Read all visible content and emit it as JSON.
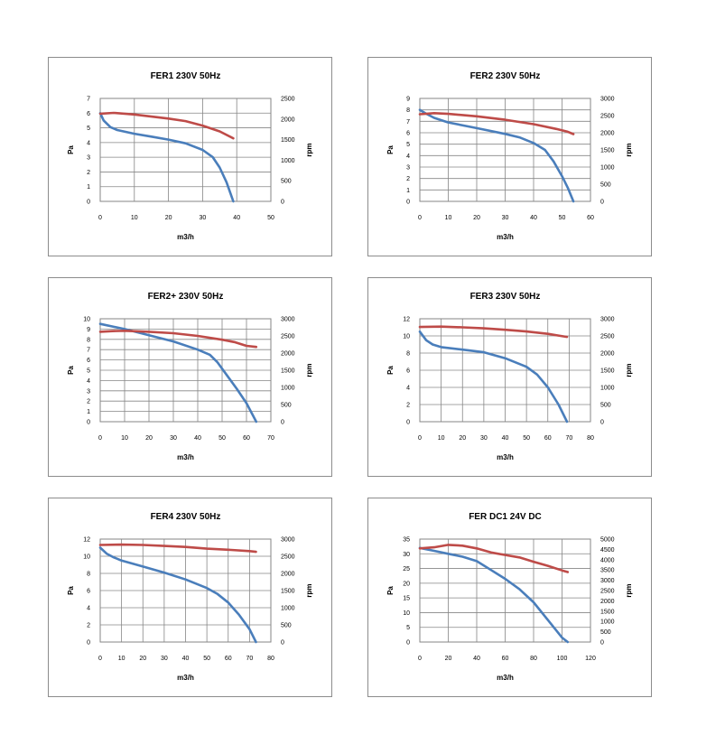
{
  "chart_data": [
    {
      "type": "line",
      "title": "FER1 230V 50Hz",
      "xlabel": "m3/h",
      "ylabel": "Pa",
      "y2label": "rpm",
      "xlim": [
        0,
        50
      ],
      "xticks": [
        0,
        10,
        20,
        30,
        40,
        50
      ],
      "ylim": [
        0,
        7
      ],
      "yticks": [
        0,
        1,
        2,
        3,
        4,
        5,
        6,
        7
      ],
      "y2lim": [
        0,
        2500
      ],
      "y2ticks": [
        0,
        500,
        1000,
        1500,
        2000,
        2500
      ],
      "grid": true,
      "series": [
        {
          "axis": "left",
          "color": "#4a7ebb",
          "points": [
            [
              0,
              6.0
            ],
            [
              1,
              5.5
            ],
            [
              3,
              5.05
            ],
            [
              5,
              4.85
            ],
            [
              10,
              4.6
            ],
            [
              15,
              4.4
            ],
            [
              20,
              4.2
            ],
            [
              25,
              3.95
            ],
            [
              30,
              3.5
            ],
            [
              33,
              3.0
            ],
            [
              35,
              2.3
            ],
            [
              37,
              1.3
            ],
            [
              39,
              0
            ]
          ]
        },
        {
          "axis": "right",
          "color": "#be4b48",
          "points": [
            [
              0,
              2130
            ],
            [
              4,
              2150
            ],
            [
              10,
              2110
            ],
            [
              15,
              2060
            ],
            [
              20,
              2010
            ],
            [
              25,
              1950
            ],
            [
              30,
              1840
            ],
            [
              35,
              1700
            ],
            [
              39,
              1530
            ]
          ]
        }
      ]
    },
    {
      "type": "line",
      "title": "FER2 230V 50Hz",
      "xlabel": "m3/h",
      "ylabel": "Pa",
      "y2label": "rpm",
      "xlim": [
        0,
        60
      ],
      "xticks": [
        0,
        10,
        20,
        30,
        40,
        50,
        60
      ],
      "ylim": [
        0,
        9
      ],
      "yticks": [
        0,
        1,
        2,
        3,
        4,
        5,
        6,
        7,
        8,
        9
      ],
      "y2lim": [
        0,
        3000
      ],
      "y2ticks": [
        0,
        500,
        1000,
        1500,
        2000,
        2500,
        3000
      ],
      "grid": true,
      "series": [
        {
          "axis": "left",
          "color": "#4a7ebb",
          "points": [
            [
              0,
              8.0
            ],
            [
              2,
              7.7
            ],
            [
              5,
              7.3
            ],
            [
              10,
              6.9
            ],
            [
              20,
              6.4
            ],
            [
              30,
              5.9
            ],
            [
              35,
              5.6
            ],
            [
              40,
              5.1
            ],
            [
              44,
              4.5
            ],
            [
              47,
              3.5
            ],
            [
              50,
              2.2
            ],
            [
              52,
              1.2
            ],
            [
              54,
              0
            ]
          ]
        },
        {
          "axis": "right",
          "color": "#be4b48",
          "points": [
            [
              0,
              2540
            ],
            [
              5,
              2570
            ],
            [
              10,
              2550
            ],
            [
              20,
              2480
            ],
            [
              30,
              2380
            ],
            [
              40,
              2250
            ],
            [
              48,
              2110
            ],
            [
              52,
              2030
            ],
            [
              54,
              1960
            ]
          ]
        }
      ]
    },
    {
      "type": "line",
      "title": "FER2+ 230V 50Hz",
      "xlabel": "m3/h",
      "ylabel": "Pa",
      "y2label": "rpm",
      "xlim": [
        0,
        70
      ],
      "xticks": [
        0,
        10,
        20,
        30,
        40,
        50,
        60,
        70
      ],
      "ylim": [
        0,
        10
      ],
      "yticks": [
        0,
        1,
        2,
        3,
        4,
        5,
        6,
        7,
        8,
        9,
        10
      ],
      "y2lim": [
        0,
        3000
      ],
      "y2ticks": [
        0,
        500,
        1000,
        1500,
        2000,
        2500,
        3000
      ],
      "grid": true,
      "series": [
        {
          "axis": "left",
          "color": "#4a7ebb",
          "points": [
            [
              0,
              9.5
            ],
            [
              10,
              9.0
            ],
            [
              20,
              8.4
            ],
            [
              30,
              7.8
            ],
            [
              40,
              7.0
            ],
            [
              45,
              6.5
            ],
            [
              48,
              5.8
            ],
            [
              52,
              4.5
            ],
            [
              56,
              3.2
            ],
            [
              60,
              1.8
            ],
            [
              64,
              0
            ]
          ]
        },
        {
          "axis": "right",
          "color": "#be4b48",
          "points": [
            [
              0,
              2620
            ],
            [
              5,
              2640
            ],
            [
              10,
              2650
            ],
            [
              20,
              2620
            ],
            [
              30,
              2580
            ],
            [
              40,
              2500
            ],
            [
              50,
              2390
            ],
            [
              55,
              2320
            ],
            [
              60,
              2210
            ],
            [
              64,
              2180
            ]
          ]
        }
      ]
    },
    {
      "type": "line",
      "title": "FER3 230V 50Hz",
      "xlabel": "m3/h",
      "ylabel": "Pa",
      "y2label": "rpm",
      "xlim": [
        0,
        80
      ],
      "xticks": [
        0,
        10,
        20,
        30,
        40,
        50,
        60,
        70,
        80
      ],
      "ylim": [
        0,
        12
      ],
      "yticks": [
        0,
        2,
        4,
        6,
        8,
        10,
        12
      ],
      "y2lim": [
        0,
        3000
      ],
      "y2ticks": [
        0,
        500,
        1000,
        1500,
        2000,
        2500,
        3000
      ],
      "grid": true,
      "series": [
        {
          "axis": "left",
          "color": "#4a7ebb",
          "points": [
            [
              0,
              10.5
            ],
            [
              3,
              9.5
            ],
            [
              6,
              9.0
            ],
            [
              10,
              8.7
            ],
            [
              20,
              8.4
            ],
            [
              30,
              8.1
            ],
            [
              40,
              7.4
            ],
            [
              50,
              6.4
            ],
            [
              55,
              5.5
            ],
            [
              60,
              4.0
            ],
            [
              65,
              2.0
            ],
            [
              69,
              0
            ]
          ]
        },
        {
          "axis": "right",
          "color": "#be4b48",
          "points": [
            [
              0,
              2760
            ],
            [
              10,
              2770
            ],
            [
              20,
              2750
            ],
            [
              30,
              2720
            ],
            [
              40,
              2680
            ],
            [
              50,
              2630
            ],
            [
              60,
              2560
            ],
            [
              65,
              2510
            ],
            [
              69,
              2470
            ]
          ]
        }
      ]
    },
    {
      "type": "line",
      "title": "FER4 230V 50Hz",
      "xlabel": "m3/h",
      "ylabel": "Pa",
      "y2label": "rpm",
      "xlim": [
        0,
        80
      ],
      "xticks": [
        0,
        10,
        20,
        30,
        40,
        50,
        60,
        70,
        80
      ],
      "ylim": [
        0,
        12
      ],
      "yticks": [
        0,
        2,
        4,
        6,
        8,
        10,
        12
      ],
      "y2lim": [
        0,
        3000
      ],
      "y2ticks": [
        0,
        500,
        1000,
        1500,
        2000,
        2500,
        3000
      ],
      "grid": true,
      "series": [
        {
          "axis": "left",
          "color": "#4a7ebb",
          "points": [
            [
              0,
              11.0
            ],
            [
              3,
              10.3
            ],
            [
              6,
              9.9
            ],
            [
              10,
              9.5
            ],
            [
              20,
              8.8
            ],
            [
              30,
              8.1
            ],
            [
              40,
              7.3
            ],
            [
              50,
              6.3
            ],
            [
              55,
              5.6
            ],
            [
              60,
              4.6
            ],
            [
              65,
              3.2
            ],
            [
              70,
              1.5
            ],
            [
              73,
              0
            ]
          ]
        },
        {
          "axis": "right",
          "color": "#be4b48",
          "points": [
            [
              0,
              2830
            ],
            [
              10,
              2840
            ],
            [
              20,
              2830
            ],
            [
              30,
              2800
            ],
            [
              40,
              2770
            ],
            [
              50,
              2720
            ],
            [
              60,
              2690
            ],
            [
              70,
              2650
            ],
            [
              73,
              2630
            ]
          ]
        }
      ]
    },
    {
      "type": "line",
      "title": "FER DC1 24V DC",
      "xlabel": "m3/h",
      "ylabel": "Pa",
      "y2label": "rpm",
      "xlim": [
        0,
        120
      ],
      "xticks": [
        0,
        20,
        40,
        60,
        80,
        100,
        120
      ],
      "ylim": [
        0,
        35
      ],
      "yticks": [
        0,
        5,
        10,
        15,
        20,
        25,
        30,
        35
      ],
      "y2lim": [
        0,
        5000
      ],
      "y2ticks": [
        0,
        500,
        1000,
        1500,
        2000,
        2500,
        3000,
        3500,
        4000,
        4500,
        5000
      ],
      "grid": true,
      "series": [
        {
          "axis": "left",
          "color": "#4a7ebb",
          "points": [
            [
              0,
              32
            ],
            [
              10,
              31
            ],
            [
              20,
              30
            ],
            [
              30,
              29
            ],
            [
              40,
              27.5
            ],
            [
              50,
              24.5
            ],
            [
              60,
              21.5
            ],
            [
              70,
              18
            ],
            [
              80,
              13.5
            ],
            [
              90,
              7.5
            ],
            [
              100,
              1.5
            ],
            [
              104,
              0
            ]
          ]
        },
        {
          "axis": "right",
          "color": "#be4b48",
          "points": [
            [
              0,
              4550
            ],
            [
              10,
              4600
            ],
            [
              20,
              4720
            ],
            [
              30,
              4680
            ],
            [
              40,
              4550
            ],
            [
              50,
              4350
            ],
            [
              60,
              4230
            ],
            [
              70,
              4110
            ],
            [
              80,
              3900
            ],
            [
              90,
              3700
            ],
            [
              100,
              3480
            ],
            [
              104,
              3400
            ]
          ]
        }
      ]
    }
  ]
}
